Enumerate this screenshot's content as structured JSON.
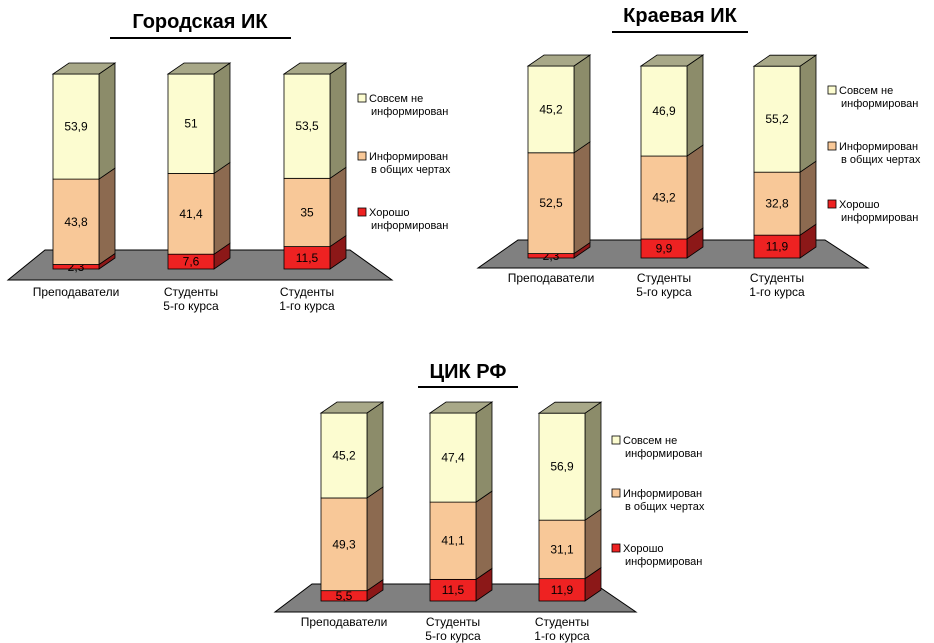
{
  "chart_data": [
    {
      "type": "bar",
      "stacked": true,
      "three_d": true,
      "title": "Городская ИК",
      "categories": [
        [
          "Преподаватели"
        ],
        [
          "Студенты",
          "5-го курса"
        ],
        [
          "Студенты",
          "1-го курса"
        ]
      ],
      "series": [
        {
          "name": "Хорошо информирован",
          "values": [
            2.3,
            7.6,
            11.5
          ]
        },
        {
          "name": "Информирован в общих чертах",
          "values": [
            43.8,
            41.4,
            35
          ]
        },
        {
          "name": "Совсем не информирован",
          "values": [
            53.9,
            51,
            53.5
          ]
        }
      ],
      "value_labels": [
        [
          "2,3",
          "7,6",
          "11,5"
        ],
        [
          "43,8",
          "41,4",
          "35"
        ],
        [
          "53,9",
          "51",
          "53,5"
        ]
      ],
      "legend": [
        [
          "Совсем не",
          "информирован"
        ],
        [
          "Информирован",
          "в общих чертах"
        ],
        [
          "Хорошо",
          "информирован"
        ]
      ],
      "legend_placement": "right",
      "ylim": [
        0,
        100
      ],
      "grid": false
    },
    {
      "type": "bar",
      "stacked": true,
      "three_d": true,
      "title": "Краевая ИК",
      "categories": [
        [
          "Преподаватели"
        ],
        [
          "Студенты",
          "5-го курса"
        ],
        [
          "Студенты",
          "1-го курса"
        ]
      ],
      "series": [
        {
          "name": "Хорошо информирован",
          "values": [
            2.3,
            9.9,
            11.9
          ]
        },
        {
          "name": "Информирован в общих чертах",
          "values": [
            52.5,
            43.2,
            32.8
          ]
        },
        {
          "name": "Совсем не информирован",
          "values": [
            45.2,
            46.9,
            55.2
          ]
        }
      ],
      "value_labels": [
        [
          "2,3",
          "9,9",
          "11,9"
        ],
        [
          "52,5",
          "43,2",
          "32,8"
        ],
        [
          "45,2",
          "46,9",
          "55,2"
        ]
      ],
      "legend": [
        [
          "Совсем не",
          "информирован"
        ],
        [
          "Информирован",
          "в общих чертах"
        ],
        [
          "Хорошо",
          "информирован"
        ]
      ],
      "legend_placement": "right",
      "ylim": [
        0,
        100
      ],
      "grid": false
    },
    {
      "type": "bar",
      "stacked": true,
      "three_d": true,
      "title": "ЦИК РФ",
      "categories": [
        [
          "Преподаватели"
        ],
        [
          "Студенты",
          "5-го курса"
        ],
        [
          "Студенты",
          "1-го курса"
        ]
      ],
      "series": [
        {
          "name": "Хорошо информирован",
          "values": [
            5.5,
            11.5,
            11.9
          ]
        },
        {
          "name": "Информирован в общих чертах",
          "values": [
            49.3,
            41.1,
            31.1
          ]
        },
        {
          "name": "Совсем не информирован",
          "values": [
            45.2,
            47.4,
            56.9
          ]
        }
      ],
      "value_labels": [
        [
          "5,5",
          "11,5",
          "11,9"
        ],
        [
          "49,3",
          "41,1",
          "31,1"
        ],
        [
          "45,2",
          "47,4",
          "56,9"
        ]
      ],
      "legend": [
        [
          "Совсем не",
          "информирован"
        ],
        [
          "Информирован",
          "в общих чертах"
        ],
        [
          "Хорошо",
          "информирован"
        ]
      ],
      "legend_placement": "right",
      "ylim": [
        0,
        100
      ],
      "grid": false
    }
  ],
  "colors": {
    "series_front": [
      "#ee2222",
      "#f8c898",
      "#fcfcd0"
    ],
    "series_side": [
      "#8c1818",
      "#8c6a50",
      "#8c8c6a"
    ],
    "series_top": [
      "#b02020",
      "#b09070",
      "#a8a888"
    ],
    "floor": "#808080",
    "legend_swatch": [
      "#fcfcd0",
      "#f8c898",
      "#ee2222"
    ]
  }
}
